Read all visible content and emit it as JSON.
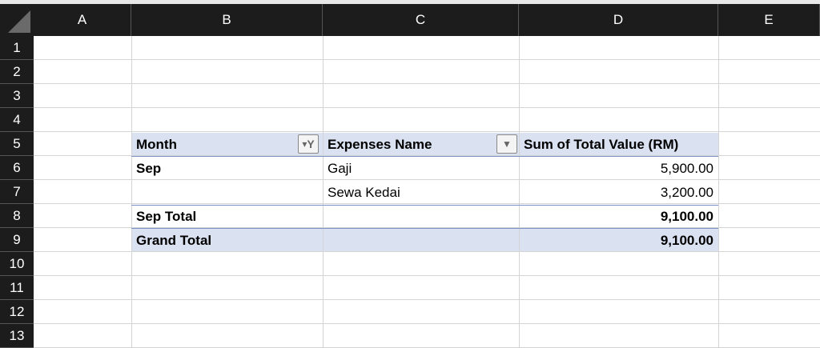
{
  "columns": [
    "A",
    "B",
    "C",
    "D",
    "E"
  ],
  "rows": [
    "1",
    "2",
    "3",
    "4",
    "5",
    "6",
    "7",
    "8",
    "9",
    "10",
    "11",
    "12",
    "13"
  ],
  "pivot": {
    "headers": {
      "month": "Month",
      "expenses_name": "Expenses Name",
      "sum": "Sum of Total Value (RM)"
    },
    "rows": [
      {
        "month": "Sep",
        "name": "Gaji",
        "value": "5,900.00"
      },
      {
        "month": "",
        "name": "Sewa Kedai",
        "value": "3,200.00"
      }
    ],
    "subtotal": {
      "label": "Sep Total",
      "value": "9,100.00"
    },
    "grand_total": {
      "label": "Grand Total",
      "value": "9,100.00"
    },
    "icons": {
      "month_filter": "filter-dropdown-icon",
      "expenses_filter": "dropdown-arrow-icon"
    },
    "colors": {
      "header_band": "#dae1f1",
      "border_accent": "#7a92c8"
    }
  }
}
